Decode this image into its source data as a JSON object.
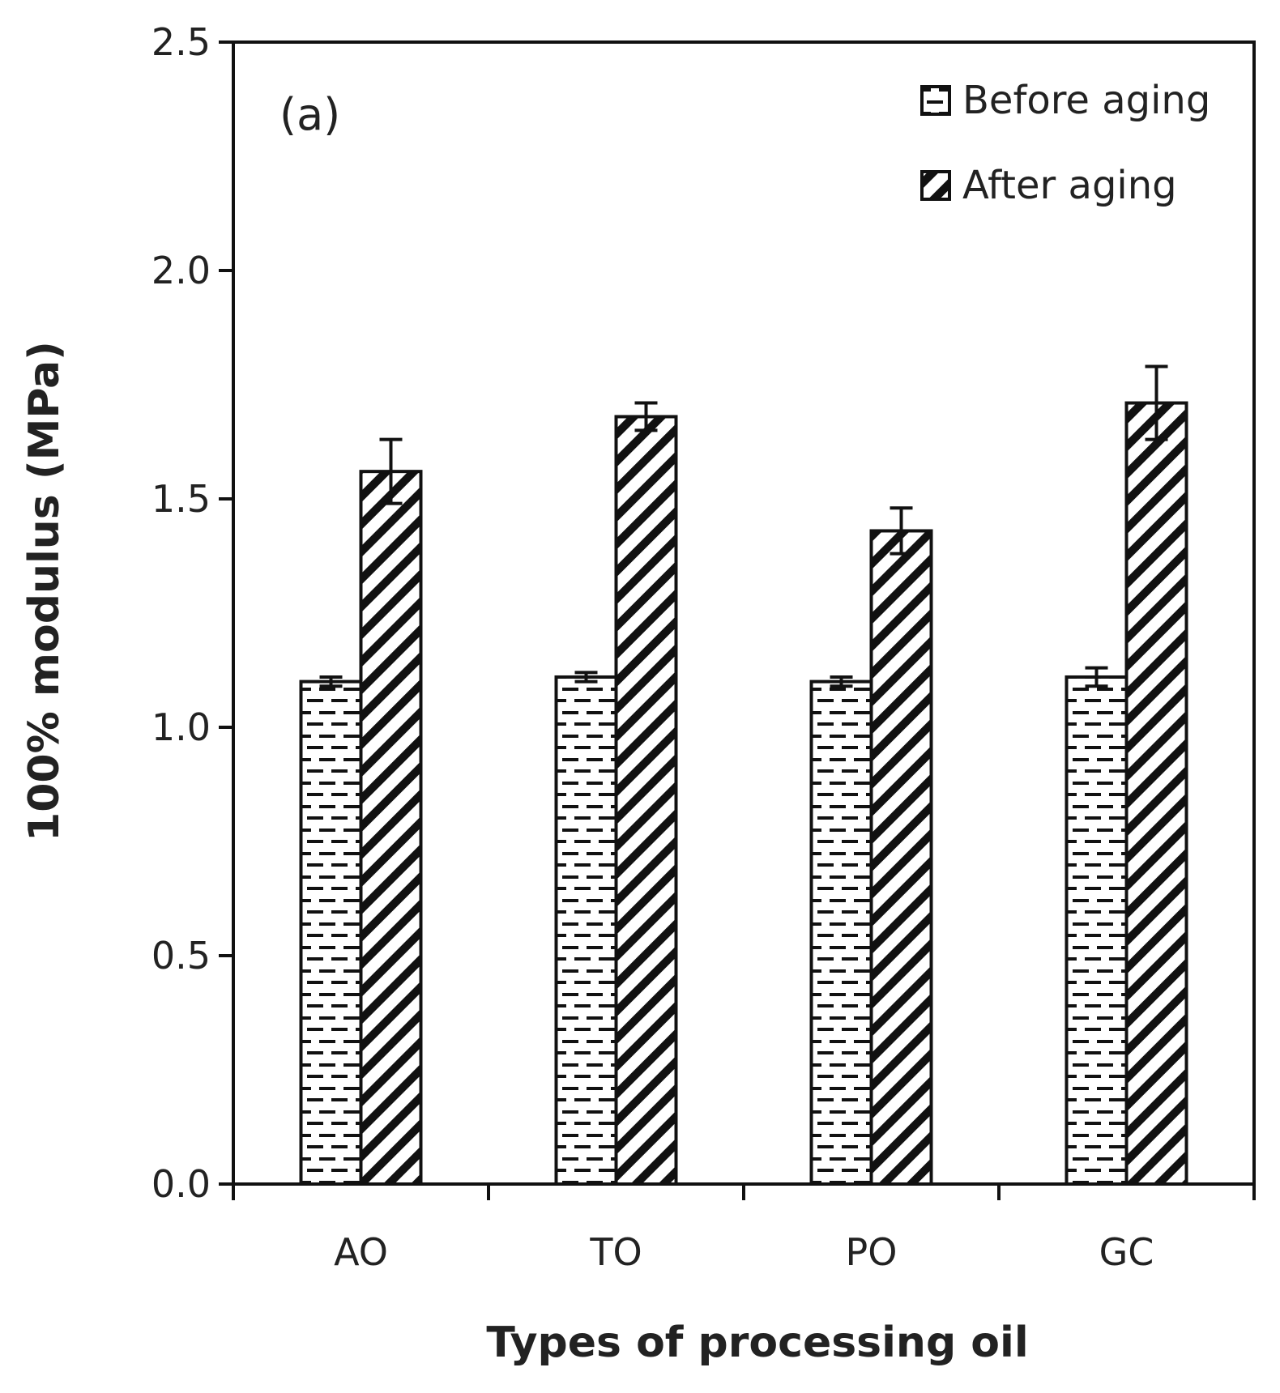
{
  "chart_data": {
    "type": "bar",
    "panel_label": "(a)",
    "title": "",
    "xlabel": "Types of processing oil",
    "ylabel": "100% modulus (MPa)",
    "categories": [
      "AO",
      "TO",
      "PO",
      "GC"
    ],
    "ylim": [
      0,
      2.5
    ],
    "yticks": [
      "0.0",
      "0.5",
      "1.0",
      "1.5",
      "2.0",
      "2.5"
    ],
    "legend_position": "top-right",
    "grid": false,
    "series": [
      {
        "name": "Before aging",
        "pattern": "dashes",
        "values": [
          1.1,
          1.11,
          1.1,
          1.11
        ],
        "errors": [
          0.01,
          0.01,
          0.01,
          0.02
        ]
      },
      {
        "name": "After aging",
        "pattern": "diagonal-hatch",
        "values": [
          1.56,
          1.68,
          1.43,
          1.71
        ],
        "errors": [
          0.07,
          0.03,
          0.05,
          0.08
        ]
      }
    ]
  }
}
